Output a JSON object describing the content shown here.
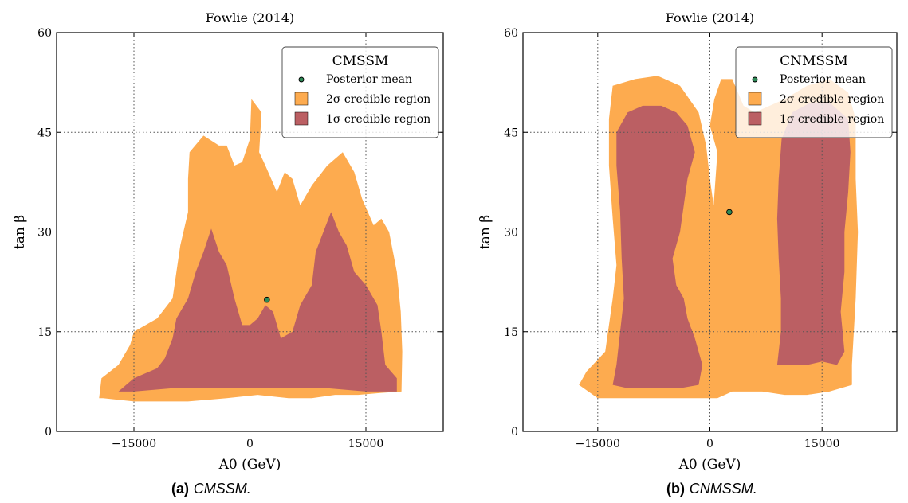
{
  "colors": {
    "region_2sigma": "#fdab4f",
    "region_1sigma": "#bb5f63",
    "mean_point": "#2e8b57",
    "grid": "#555555"
  },
  "chart_data": [
    {
      "type": "contour",
      "title": "Fowlie (2014)",
      "xlabel": "A0 (GeV)",
      "ylabel": "tan β",
      "xlim": [
        -25000,
        25000
      ],
      "ylim": [
        0,
        60
      ],
      "xticks": [
        -15000,
        0,
        15000
      ],
      "xtick_labels": [
        "−15000",
        "0",
        "15000"
      ],
      "yticks": [
        0,
        15,
        30,
        45,
        60
      ],
      "ytick_labels": [
        "0",
        "15",
        "30",
        "45",
        "60"
      ],
      "grid": true,
      "legend_position": "top-right",
      "legend": {
        "title": "CMSSM",
        "entries": [
          {
            "label": "Posterior mean",
            "kind": "point"
          },
          {
            "label": "2σ credible region",
            "kind": "region_2sigma"
          },
          {
            "label": "1σ credible region",
            "kind": "region_1sigma"
          }
        ]
      },
      "posterior_mean": {
        "x": 2200,
        "y": 19.8
      },
      "region_2sigma": [
        [
          -19500,
          5
        ],
        [
          -19200,
          8
        ],
        [
          -17000,
          10
        ],
        [
          -15500,
          13
        ],
        [
          -15000,
          15
        ],
        [
          -12000,
          17
        ],
        [
          -10000,
          20
        ],
        [
          -9500,
          24
        ],
        [
          -9000,
          28
        ],
        [
          -8000,
          33
        ],
        [
          -8000,
          38
        ],
        [
          -7800,
          42
        ],
        [
          -6000,
          44.5
        ],
        [
          -4000,
          43
        ],
        [
          -3000,
          43
        ],
        [
          -2000,
          40
        ],
        [
          -1000,
          40.5
        ],
        [
          0,
          44
        ],
        [
          200,
          50
        ],
        [
          1500,
          48
        ],
        [
          1200,
          42
        ],
        [
          2000,
          40
        ],
        [
          3500,
          36
        ],
        [
          4500,
          39
        ],
        [
          5500,
          38
        ],
        [
          6500,
          34
        ],
        [
          8000,
          37
        ],
        [
          10000,
          40
        ],
        [
          12000,
          42
        ],
        [
          13500,
          39
        ],
        [
          14500,
          35
        ],
        [
          16000,
          31
        ],
        [
          17000,
          32
        ],
        [
          18000,
          30
        ],
        [
          19000,
          24
        ],
        [
          19500,
          18
        ],
        [
          19700,
          12
        ],
        [
          19600,
          6
        ],
        [
          17000,
          5.8
        ],
        [
          14000,
          5.5
        ],
        [
          11000,
          5.5
        ],
        [
          8000,
          5
        ],
        [
          5000,
          5
        ],
        [
          1000,
          5.5
        ],
        [
          -3000,
          5
        ],
        [
          -8000,
          4.5
        ],
        [
          -15000,
          4.5
        ],
        [
          -19000,
          5
        ]
      ],
      "region_1sigma": [
        [
          -17000,
          6
        ],
        [
          -15000,
          8
        ],
        [
          -12000,
          9.5
        ],
        [
          -11000,
          11
        ],
        [
          -10000,
          14
        ],
        [
          -9500,
          17
        ],
        [
          -8000,
          20
        ],
        [
          -7000,
          24
        ],
        [
          -6000,
          27
        ],
        [
          -5000,
          30.5
        ],
        [
          -4000,
          27
        ],
        [
          -3000,
          25
        ],
        [
          -2000,
          20
        ],
        [
          -1000,
          16
        ],
        [
          0,
          16
        ],
        [
          1000,
          17
        ],
        [
          2000,
          19
        ],
        [
          3000,
          18
        ],
        [
          4000,
          14
        ],
        [
          5500,
          15
        ],
        [
          6500,
          19
        ],
        [
          8000,
          22
        ],
        [
          8500,
          27
        ],
        [
          9500,
          30
        ],
        [
          10500,
          33
        ],
        [
          11500,
          30
        ],
        [
          12500,
          28
        ],
        [
          13500,
          24
        ],
        [
          15000,
          22
        ],
        [
          16500,
          19
        ],
        [
          17000,
          15
        ],
        [
          17500,
          10
        ],
        [
          19000,
          8
        ],
        [
          19000,
          6
        ],
        [
          15000,
          6
        ],
        [
          10000,
          6.5
        ],
        [
          5000,
          6.5
        ],
        [
          0,
          6.5
        ],
        [
          -5000,
          6.5
        ],
        [
          -10000,
          6.5
        ],
        [
          -15000,
          6
        ]
      ]
    },
    {
      "type": "contour",
      "title": "Fowlie (2014)",
      "xlabel": "A0 (GeV)",
      "ylabel": "tan β",
      "xlim": [
        -25000,
        25000
      ],
      "ylim": [
        0,
        60
      ],
      "xticks": [
        -15000,
        0,
        15000
      ],
      "xtick_labels": [
        "−15000",
        "0",
        "15000"
      ],
      "yticks": [
        0,
        15,
        30,
        45,
        60
      ],
      "ytick_labels": [
        "0",
        "15",
        "30",
        "45",
        "60"
      ],
      "grid": true,
      "legend_position": "top-right",
      "legend": {
        "title": "CNMSSM",
        "entries": [
          {
            "label": "Posterior mean",
            "kind": "point"
          },
          {
            "label": "2σ credible region",
            "kind": "region_2sigma"
          },
          {
            "label": "1σ credible region",
            "kind": "region_1sigma"
          }
        ]
      },
      "posterior_mean": {
        "x": 2600,
        "y": 33
      },
      "region_2sigma": [
        [
          -15000,
          5
        ],
        [
          -17500,
          7
        ],
        [
          -16500,
          9
        ],
        [
          -14000,
          12
        ],
        [
          -13500,
          16
        ],
        [
          -13000,
          20
        ],
        [
          -12500,
          25
        ],
        [
          -13000,
          32
        ],
        [
          -13500,
          40
        ],
        [
          -13500,
          47
        ],
        [
          -13000,
          52
        ],
        [
          -10000,
          53
        ],
        [
          -7000,
          53.5
        ],
        [
          -4000,
          52
        ],
        [
          -1500,
          48
        ],
        [
          -500,
          43
        ],
        [
          0,
          38
        ],
        [
          500,
          34
        ],
        [
          1000,
          42
        ],
        [
          0,
          46
        ],
        [
          600,
          50
        ],
        [
          1500,
          53
        ],
        [
          3000,
          53
        ],
        [
          4500,
          49
        ],
        [
          6000,
          48
        ],
        [
          8000,
          49
        ],
        [
          10000,
          50
        ],
        [
          13000,
          52
        ],
        [
          16000,
          53
        ],
        [
          18500,
          51
        ],
        [
          19500,
          47
        ],
        [
          19500,
          38
        ],
        [
          19800,
          30
        ],
        [
          19500,
          20
        ],
        [
          19000,
          10
        ],
        [
          19000,
          7
        ],
        [
          16000,
          6
        ],
        [
          13000,
          5.5
        ],
        [
          10000,
          5.5
        ],
        [
          7000,
          6
        ],
        [
          3000,
          6
        ],
        [
          1000,
          5
        ],
        [
          -2000,
          5
        ],
        [
          -6000,
          5
        ],
        [
          -10000,
          5
        ],
        [
          -13000,
          5
        ]
      ],
      "region_1sigma": [
        [
          -13000,
          7
        ],
        [
          -12500,
          10
        ],
        [
          -12000,
          15
        ],
        [
          -11500,
          20
        ],
        [
          -11800,
          26
        ],
        [
          -12000,
          33
        ],
        [
          -12500,
          40
        ],
        [
          -12500,
          45
        ],
        [
          -11000,
          48
        ],
        [
          -9000,
          49
        ],
        [
          -6500,
          49
        ],
        [
          -4500,
          48
        ],
        [
          -3000,
          46
        ],
        [
          -2000,
          42
        ],
        [
          -3000,
          38
        ],
        [
          -3500,
          34
        ],
        [
          -4000,
          30
        ],
        [
          -5000,
          26
        ],
        [
          -4500,
          22
        ],
        [
          -3500,
          20
        ],
        [
          -3000,
          17
        ],
        [
          -2000,
          14
        ],
        [
          -1000,
          10
        ],
        [
          -1500,
          7
        ],
        [
          -4000,
          6.5
        ],
        [
          -8000,
          6.5
        ],
        [
          -11000,
          6.5
        ]
      ],
      "region_1sigma_2": [
        [
          9000,
          10
        ],
        [
          9500,
          15
        ],
        [
          9500,
          20
        ],
        [
          9200,
          26
        ],
        [
          9000,
          32
        ],
        [
          9200,
          38
        ],
        [
          9600,
          44
        ],
        [
          11000,
          48
        ],
        [
          13500,
          49.5
        ],
        [
          16000,
          49.5
        ],
        [
          18500,
          47
        ],
        [
          18800,
          42
        ],
        [
          18500,
          36
        ],
        [
          18000,
          30
        ],
        [
          18000,
          24
        ],
        [
          17500,
          18
        ],
        [
          18000,
          12
        ],
        [
          17000,
          10
        ],
        [
          15000,
          10.5
        ],
        [
          13000,
          10
        ],
        [
          11000,
          10
        ]
      ]
    }
  ],
  "captions": [
    {
      "label": "(a)",
      "text": "CMSSM."
    },
    {
      "label": "(b)",
      "text": "CNMSSM."
    }
  ]
}
